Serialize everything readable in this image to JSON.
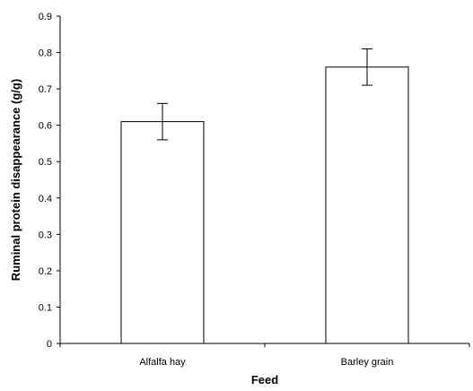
{
  "chart_data": {
    "type": "bar",
    "categories": [
      "Alfalfa hay",
      "Barley grain"
    ],
    "values": [
      0.61,
      0.76
    ],
    "error": [
      0.05,
      0.05
    ],
    "title": "",
    "xlabel": "Feed",
    "ylabel": "Ruminal protein disappearance (g/g)",
    "ylim": [
      0,
      0.9
    ],
    "yticks": [
      "0",
      "0.1",
      "0.2",
      "0.3",
      "0.4",
      "0.5",
      "0.6",
      "0.7",
      "0.8",
      "0.9"
    ],
    "grid": false,
    "legend": "none",
    "bar_fill": "#ffffff",
    "bar_stroke": "#000000"
  }
}
